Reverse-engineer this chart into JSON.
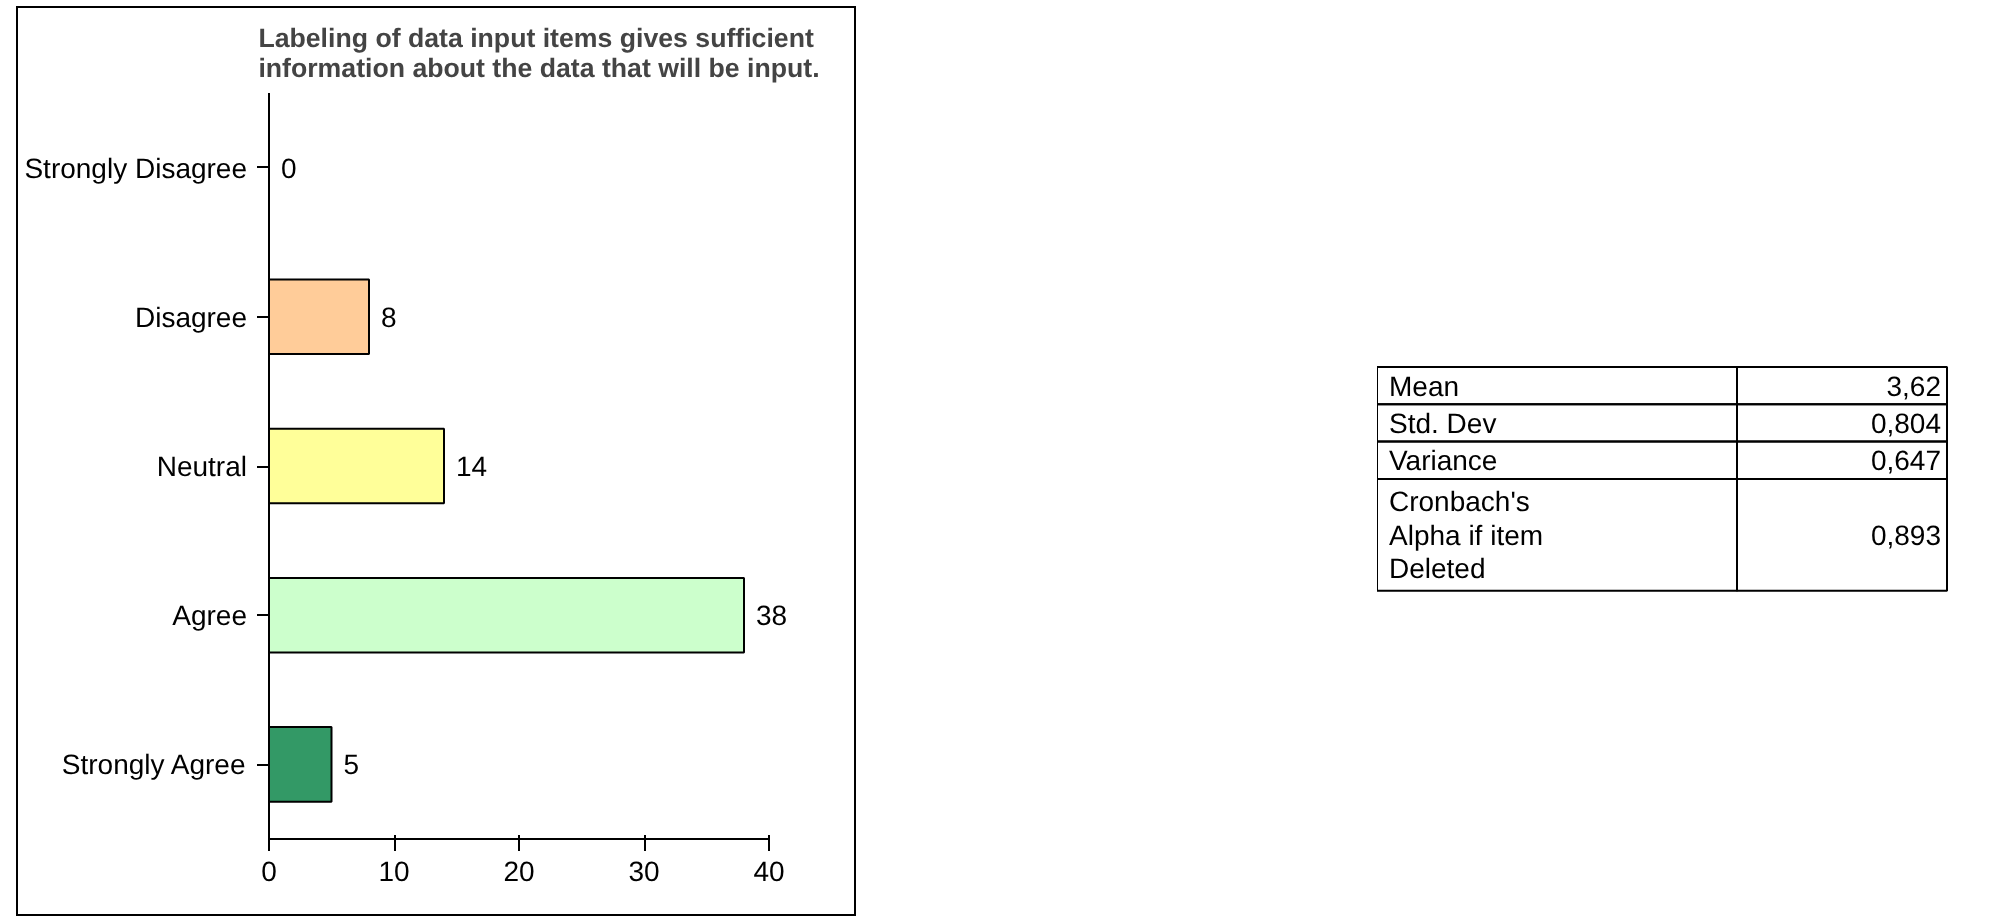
{
  "chart_data": [
    {
      "type": "bar",
      "orientation": "horizontal",
      "title": "Labeling of data input items gives sufficient information about the data that will be input.",
      "categories": [
        "Strongly Disagree",
        "Disagree",
        "Neutral",
        "Agree",
        "Strongly Agree"
      ],
      "values": [
        0,
        8,
        14,
        38,
        5
      ],
      "colors": [
        "#000000",
        "#ffcc99",
        "#ffff99",
        "#ccffcc",
        "#339966"
      ],
      "xlim": [
        0,
        40
      ],
      "xticks": [
        0,
        10,
        20,
        30,
        40
      ],
      "grid": false,
      "data_labels": true
    },
    {
      "type": "other",
      "annotations": [
        "Mean",
        "3,62",
        "Std. Dev",
        "0,804",
        "Variance",
        "0,647",
        "Cronbach's\nAlpha if item\nDeleted",
        "0,893"
      ]
    }
  ]
}
